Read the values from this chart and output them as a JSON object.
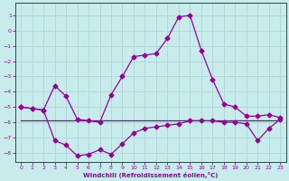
{
  "xlabel": "Windchill (Refroidissement éolien,°C)",
  "bg_color": "#c8ecec",
  "grid_color": "#b0d8d8",
  "line_color": "#990099",
  "xlim": [
    -0.5,
    23.5
  ],
  "ylim": [
    -8.6,
    1.8
  ],
  "xticks": [
    0,
    1,
    2,
    3,
    4,
    5,
    6,
    7,
    8,
    9,
    10,
    11,
    12,
    13,
    14,
    15,
    16,
    17,
    18,
    19,
    20,
    21,
    22,
    23
  ],
  "yticks": [
    1,
    0,
    -1,
    -2,
    -3,
    -4,
    -5,
    -6,
    -7,
    -8
  ],
  "curve_upper_x": [
    0,
    1,
    2,
    3,
    4,
    5,
    6,
    7,
    8,
    9,
    10,
    11,
    12,
    13,
    14,
    15,
    16,
    17,
    18,
    19,
    20,
    21,
    22,
    23
  ],
  "curve_upper_y": [
    -5.0,
    -5.1,
    -5.2,
    -3.6,
    -4.3,
    -5.8,
    -5.9,
    -6.0,
    -4.2,
    -3.0,
    -1.7,
    -1.6,
    -1.5,
    -0.5,
    0.9,
    1.0,
    -1.3,
    -3.2,
    -4.8,
    -5.0,
    -5.6,
    -5.6,
    -5.5,
    -5.7
  ],
  "curve_lower_x": [
    0,
    1,
    2,
    3,
    4,
    5,
    6,
    7,
    8,
    9,
    10,
    11,
    12,
    13,
    14,
    15,
    16,
    17,
    18,
    19,
    20,
    21,
    22,
    23
  ],
  "curve_lower_y": [
    -5.0,
    -5.1,
    -5.2,
    -7.2,
    -7.5,
    -8.2,
    -8.1,
    -7.8,
    -8.1,
    -7.4,
    -6.7,
    -6.4,
    -6.3,
    -6.2,
    -6.1,
    -5.9,
    -5.9,
    -5.9,
    -6.0,
    -6.0,
    -6.1,
    -7.2,
    -6.4,
    -5.8
  ],
  "curve_flat_x": [
    0,
    1,
    2,
    3,
    4,
    5,
    6,
    7,
    8,
    9,
    10,
    11,
    12,
    13,
    14,
    15,
    16,
    17,
    18,
    19,
    20,
    21,
    22,
    23
  ],
  "curve_flat_y": [
    -5.9,
    -5.9,
    -5.9,
    -5.9,
    -5.9,
    -5.9,
    -5.9,
    -5.9,
    -5.9,
    -5.9,
    -5.9,
    -5.9,
    -5.9,
    -5.9,
    -5.9,
    -5.9,
    -5.9,
    -5.9,
    -5.9,
    -5.9,
    -5.9,
    -5.9,
    -5.9,
    -5.9
  ]
}
